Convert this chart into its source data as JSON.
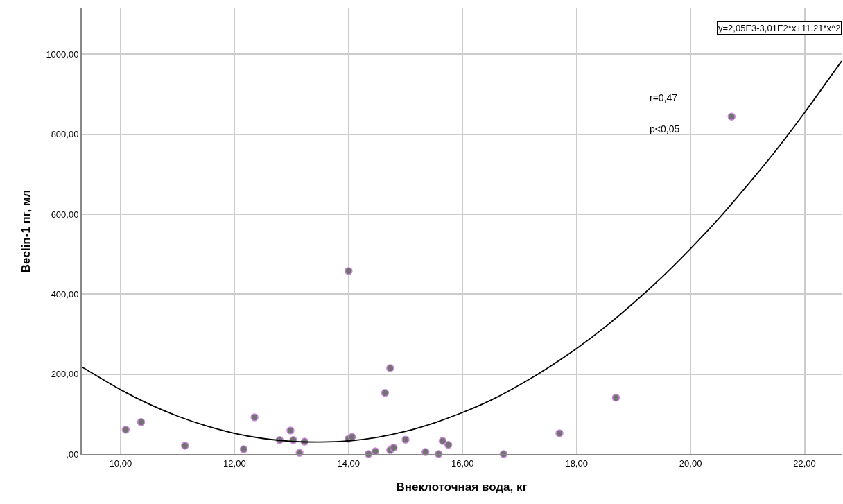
{
  "chart_data": {
    "type": "scatter",
    "xlabel": "Внеклоточная вода, кг",
    "ylabel": "Beclin-1 пг, мл",
    "xlim": [
      9.32,
      22.65
    ],
    "ylim": [
      0,
      1115
    ],
    "xticks": [
      {
        "value": 10,
        "label": "10,00"
      },
      {
        "value": 12,
        "label": "12,00"
      },
      {
        "value": 14,
        "label": "14,00"
      },
      {
        "value": 16,
        "label": "16,00"
      },
      {
        "value": 18,
        "label": "18,00"
      },
      {
        "value": 20,
        "label": "20,00"
      },
      {
        "value": 22,
        "label": "22,00"
      }
    ],
    "yticks": [
      {
        "value": 0,
        "label": ",00"
      },
      {
        "value": 200,
        "label": "200,00"
      },
      {
        "value": 400,
        "label": "400,00"
      },
      {
        "value": 600,
        "label": "600,00"
      },
      {
        "value": 800,
        "label": "800,00"
      },
      {
        "value": 1000,
        "label": "1000,00"
      }
    ],
    "grid": true,
    "legend": false,
    "marker": "circle",
    "series": [
      {
        "color": "#737373",
        "x": [
          10.09,
          10.36,
          11.13,
          12.16,
          12.35,
          12.79,
          12.98,
          13.03,
          13.14,
          13.23,
          14.0,
          14.06,
          14.0,
          14.35,
          14.47,
          14.64,
          14.73,
          14.73,
          14.79,
          15.0,
          15.35,
          15.58,
          15.65,
          15.75,
          16.72,
          17.7,
          18.69,
          20.72
        ],
        "values": [
          61,
          80,
          21,
          12,
          92,
          35,
          59,
          35,
          3,
          31,
          38,
          43,
          458,
          0,
          7,
          153,
          215,
          10,
          16,
          36,
          5,
          0,
          33,
          23,
          0,
          52,
          141,
          844
        ]
      },
      {
        "type": "line",
        "color": "#000000",
        "marker": "none",
        "line_style": "solid",
        "x": [
          9.32,
          10,
          10.5,
          11,
          11.5,
          12,
          12.5,
          13,
          13.5,
          14,
          14.5,
          15,
          15.5,
          16,
          16.5,
          17,
          17.5,
          18,
          18.5,
          19,
          19.5,
          20,
          20.5,
          21,
          21.5,
          22,
          22.65
        ],
        "values": [
          218,
          161,
          125,
          95,
          71,
          52,
          39,
          32,
          30,
          33,
          42,
          57,
          78,
          104,
          135,
          173,
          216,
          264,
          318,
          378,
          443,
          514,
          590,
          673,
          760,
          854,
          983
        ]
      }
    ],
    "annotations": [
      "y=2,05E3-3,01E2*x+11,21*x^2",
      "r=0,47",
      "p<0,05"
    ]
  }
}
